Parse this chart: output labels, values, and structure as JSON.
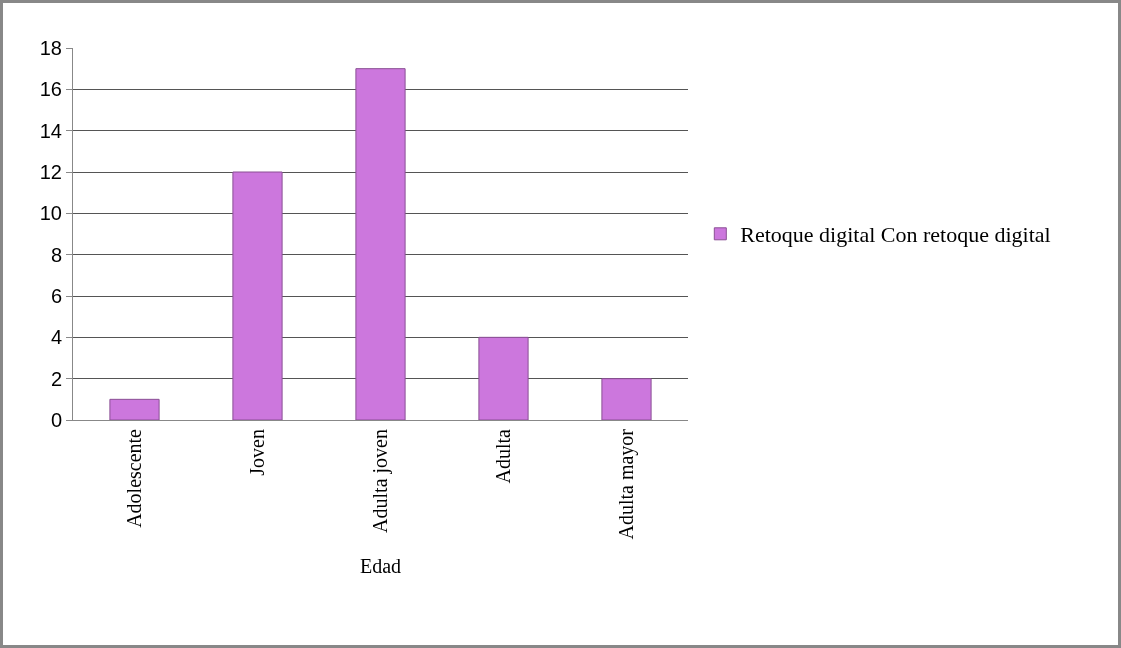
{
  "chart_data": {
    "type": "bar",
    "xlabel": "Edad",
    "categories": [
      "Adolescente",
      "Joven",
      "Adulta joven",
      "Adulta",
      "Adulta mayor"
    ],
    "series": [
      {
        "name": "Retoque digital Con retoque digital",
        "color": "#cc77dd",
        "values": [
          1,
          12,
          17,
          4,
          2
        ]
      }
    ],
    "ylim": [
      0,
      18
    ],
    "yticks": [
      0,
      2,
      4,
      6,
      8,
      10,
      12,
      14,
      16,
      18
    ],
    "grid": "y",
    "legend": "right"
  }
}
